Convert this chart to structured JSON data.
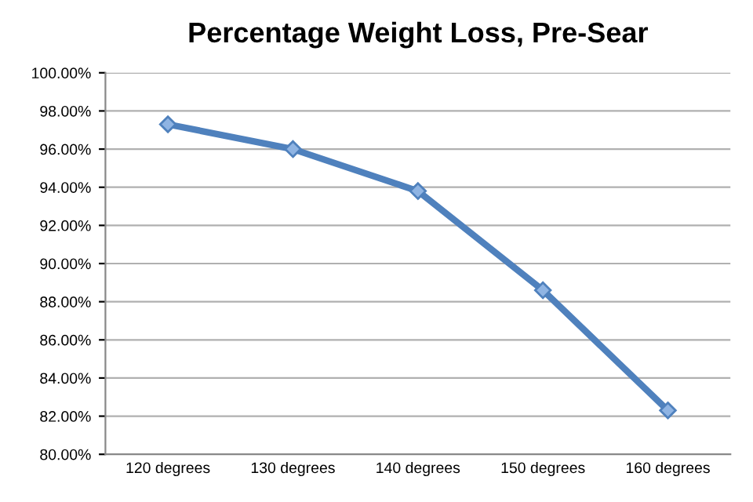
{
  "chart_data": {
    "type": "line",
    "title": "Percentage Weight Loss, Pre-Sear",
    "categories": [
      "120 degrees",
      "130 degrees",
      "140 degrees",
      "150 degrees",
      "160 degrees"
    ],
    "series": [
      {
        "color": "#4f81bd",
        "values": [
          97.3,
          96.0,
          93.8,
          88.6,
          82.3
        ]
      }
    ],
    "ylim": [
      80,
      100
    ],
    "yticks": [
      {
        "value": 80,
        "label": "80.00%"
      },
      {
        "value": 82,
        "label": "82.00%"
      },
      {
        "value": 84,
        "label": "84.00%"
      },
      {
        "value": 86,
        "label": "86.00%"
      },
      {
        "value": 88,
        "label": "88.00%"
      },
      {
        "value": 90,
        "label": "90.00%"
      },
      {
        "value": 92,
        "label": "92.00%"
      },
      {
        "value": 94,
        "label": "94.00%"
      },
      {
        "value": 96,
        "label": "96.00%"
      },
      {
        "value": 98,
        "label": "98.00%"
      },
      {
        "value": 100,
        "label": "100.00%"
      }
    ],
    "grid": "y",
    "marker": "diamond",
    "line_style": "solid",
    "legend": false
  }
}
